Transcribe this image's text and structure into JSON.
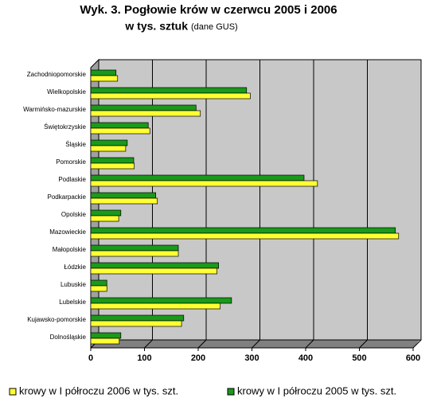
{
  "chart_data": {
    "type": "bar",
    "orientation": "horizontal",
    "title": "Wyk. 3. Pogłowie krów w czerwcu 2005 i 2006",
    "title_line2": "w tys. sztuk",
    "source": "(dane GUS)",
    "categories": [
      "Zachodniopomorskie",
      "Wielkopolskie",
      "Warmińsko-mazurskie",
      "Świętokrzyskie",
      "Śląskie",
      "Pomorskie",
      "Podlaskie",
      "Podkarpackie",
      "Opolskie",
      "Mazowieckie",
      "Małopolskie",
      "Łódzkie",
      "Lubuskie",
      "Lubelskie",
      "Kujawsko-pomorskie",
      "Dolnośląskie"
    ],
    "series": [
      {
        "name": "krowy w I półroczu 2006 w tys. szt.",
        "color": "#ffff33",
        "values": [
          50,
          297,
          204,
          110,
          65,
          81,
          422,
          124,
          52,
          573,
          163,
          235,
          30,
          241,
          169,
          53
        ]
      },
      {
        "name": "krowy w I półroczu 2005 w tys. szt.",
        "color": "#1a9a1a",
        "values": [
          47,
          290,
          196,
          107,
          68,
          80,
          397,
          121,
          56,
          567,
          163,
          238,
          30,
          262,
          173,
          56
        ]
      }
    ],
    "xlim": [
      0,
      600
    ],
    "xticks": [
      0,
      100,
      200,
      300,
      400,
      500,
      600
    ],
    "grid": true
  }
}
